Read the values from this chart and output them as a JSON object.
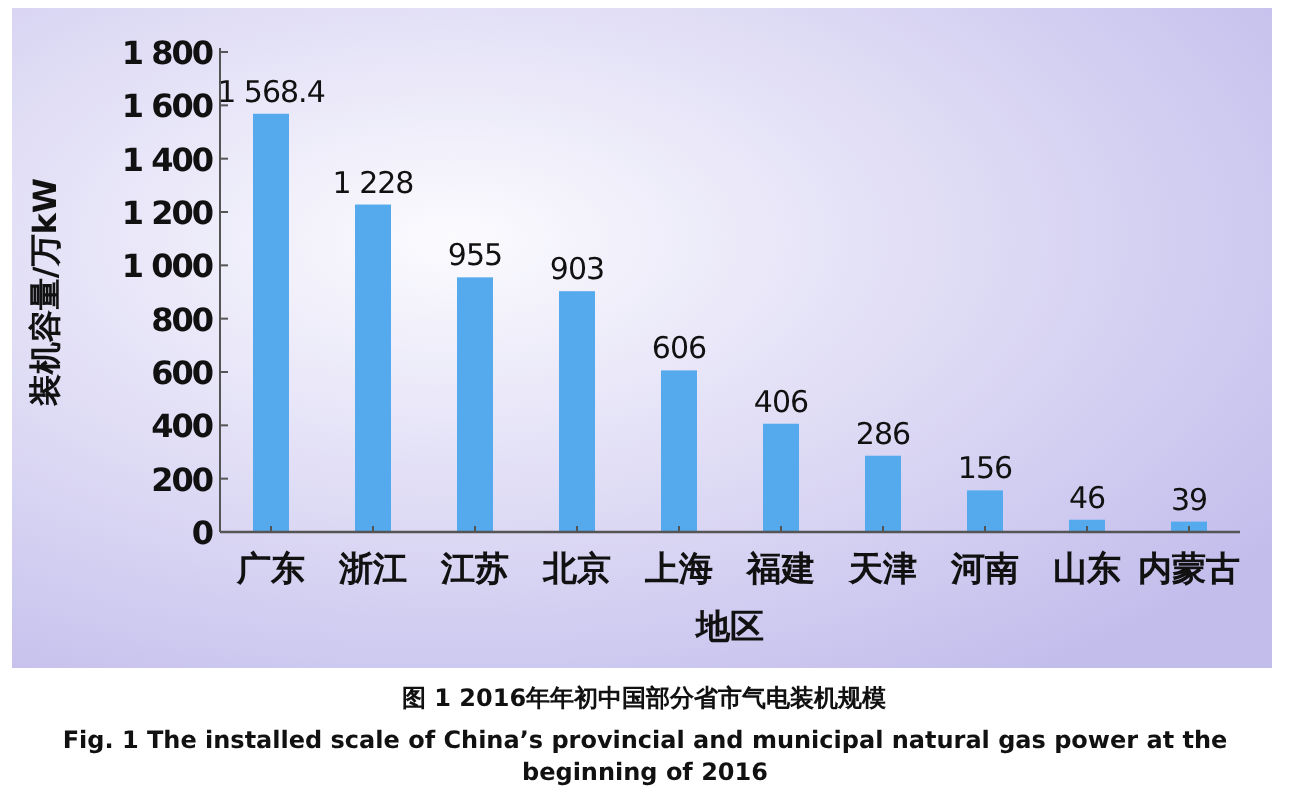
{
  "chart_data": {
    "type": "bar",
    "title": "图 1 2016年年初中国部分省市气电装机规模",
    "subtitle": "Fig. 1 The installed scale of China’s provincial and municipal natural gas power at the beginning of 2016",
    "xlabel": "地区",
    "ylabel": "装机容量/万kW",
    "categories": [
      "广东",
      "浙江",
      "江苏",
      "北京",
      "上海",
      "福建",
      "天津",
      "河南",
      "山东",
      "内蒙古"
    ],
    "values": [
      1568.4,
      1228,
      955,
      903,
      606,
      406,
      286,
      156,
      46,
      39
    ],
    "value_labels": [
      "1 568.4",
      "1 228",
      "955",
      "903",
      "606",
      "406",
      "286",
      "156",
      "46",
      "39"
    ],
    "color": "#55aaee",
    "ylim": [
      0,
      1800
    ],
    "yticks": [
      0,
      200,
      400,
      600,
      800,
      {
        "value": 1000,
        "label": "1 000"
      },
      {
        "value": 1200,
        "label": "1 200"
      },
      {
        "value": 1400,
        "label": "1 400"
      },
      {
        "value": 1600,
        "label": "1 600"
      },
      {
        "value": 1800,
        "label": "1 800"
      }
    ]
  }
}
